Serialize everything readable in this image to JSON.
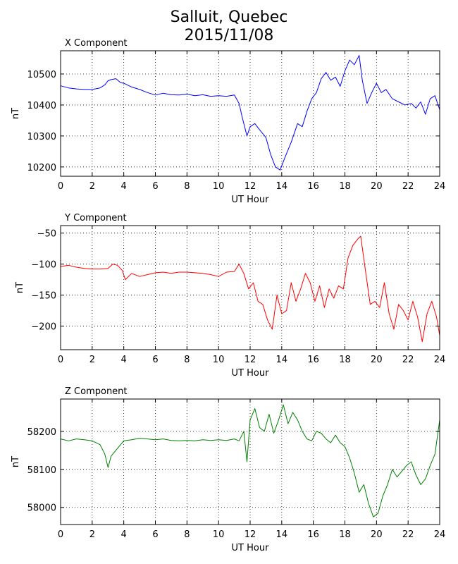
{
  "title": "Salluit, Quebec",
  "subtitle": "2015/11/08",
  "chart_data": [
    {
      "type": "line",
      "title": "X Component",
      "xlabel": "UT Hour",
      "ylabel": "nT",
      "color": "#0000ff",
      "xlim": [
        0,
        24
      ],
      "ylim": [
        10170,
        10575
      ],
      "xticks": [
        0,
        2,
        4,
        6,
        8,
        10,
        12,
        14,
        16,
        18,
        20,
        22,
        24
      ],
      "yticks": [
        10200,
        10300,
        10400,
        10500
      ],
      "grid": true,
      "series": [
        {
          "x": [
            0,
            0.5,
            1,
            1.5,
            2,
            2.5,
            2.8,
            3.0,
            3.2,
            3.5,
            3.8,
            4.0,
            4.5,
            5.0,
            5.5,
            6.0,
            6.5,
            7.0,
            7.5,
            8.0,
            8.5,
            9.0,
            9.5,
            10.0,
            10.5,
            11.0,
            11.3,
            11.5,
            11.8,
            12.0,
            12.3,
            12.6,
            13.0,
            13.3,
            13.6,
            13.9,
            14.2,
            14.6,
            15.0,
            15.3,
            15.6,
            15.9,
            16.2,
            16.5,
            16.8,
            17.1,
            17.4,
            17.7,
            18.0,
            18.3,
            18.6,
            18.9,
            19.1,
            19.4,
            19.7,
            20.0,
            20.3,
            20.6,
            21.0,
            21.4,
            21.8,
            22.2,
            22.5,
            22.8,
            23.1,
            23.4,
            23.7,
            24.0
          ],
          "y": [
            10462,
            10455,
            10452,
            10450,
            10450,
            10455,
            10465,
            10478,
            10482,
            10485,
            10472,
            10470,
            10458,
            10450,
            10440,
            10432,
            10438,
            10433,
            10432,
            10435,
            10430,
            10433,
            10428,
            10430,
            10428,
            10432,
            10405,
            10360,
            10300,
            10330,
            10340,
            10320,
            10295,
            10240,
            10200,
            10190,
            10230,
            10280,
            10340,
            10330,
            10380,
            10420,
            10440,
            10485,
            10505,
            10480,
            10490,
            10460,
            10510,
            10545,
            10530,
            10560,
            10480,
            10405,
            10440,
            10470,
            10440,
            10450,
            10420,
            10410,
            10400,
            10405,
            10390,
            10410,
            10370,
            10420,
            10430,
            10385
          ]
        }
      ]
    },
    {
      "type": "line",
      "title": "Y Component",
      "xlabel": "UT Hour",
      "ylabel": "nT",
      "color": "#ff0000",
      "xlim": [
        0,
        24
      ],
      "ylim": [
        -238,
        -38
      ],
      "xticks": [
        0,
        2,
        4,
        6,
        8,
        10,
        12,
        14,
        16,
        18,
        20,
        22,
        24
      ],
      "yticks": [
        -50,
        -100,
        -150,
        -200
      ],
      "grid": true,
      "series": [
        {
          "x": [
            0,
            0.5,
            1,
            1.5,
            2,
            2.5,
            3.0,
            3.3,
            3.6,
            3.9,
            4.1,
            4.5,
            5.0,
            5.5,
            6.0,
            6.5,
            7.0,
            7.5,
            8.0,
            8.5,
            9.0,
            9.5,
            10.0,
            10.5,
            11.0,
            11.3,
            11.6,
            11.9,
            12.2,
            12.5,
            12.8,
            13.1,
            13.4,
            13.7,
            14.0,
            14.3,
            14.6,
            14.9,
            15.2,
            15.5,
            15.8,
            16.1,
            16.4,
            16.7,
            17.0,
            17.3,
            17.6,
            17.9,
            18.2,
            18.5,
            18.8,
            19.0,
            19.3,
            19.6,
            19.9,
            20.2,
            20.5,
            20.8,
            21.1,
            21.4,
            21.7,
            22.0,
            22.3,
            22.6,
            22.9,
            23.2,
            23.5,
            23.8,
            24.0
          ],
          "y": [
            -104,
            -102,
            -105,
            -107,
            -108,
            -108,
            -107,
            -100,
            -102,
            -110,
            -125,
            -115,
            -120,
            -117,
            -114,
            -113,
            -115,
            -113,
            -113,
            -114,
            -115,
            -117,
            -120,
            -113,
            -112,
            -100,
            -115,
            -140,
            -130,
            -160,
            -165,
            -190,
            -205,
            -150,
            -180,
            -175,
            -130,
            -160,
            -140,
            -115,
            -130,
            -160,
            -135,
            -170,
            -140,
            -155,
            -135,
            -140,
            -90,
            -70,
            -60,
            -55,
            -110,
            -165,
            -160,
            -170,
            -130,
            -180,
            -205,
            -165,
            -175,
            -190,
            -160,
            -185,
            -225,
            -180,
            -160,
            -185,
            -215
          ]
        }
      ]
    },
    {
      "type": "line",
      "title": "Z Component",
      "xlabel": "UT Hour",
      "ylabel": "nT",
      "color": "#008000",
      "xlim": [
        0,
        24
      ],
      "ylim": [
        57955,
        58285
      ],
      "xticks": [
        0,
        2,
        4,
        6,
        8,
        10,
        12,
        14,
        16,
        18,
        20,
        22,
        24
      ],
      "yticks": [
        58000,
        58100,
        58200
      ],
      "grid": true,
      "series": [
        {
          "x": [
            0,
            0.5,
            1,
            1.5,
            2,
            2.5,
            2.8,
            3.0,
            3.2,
            3.6,
            4.0,
            4.5,
            5.0,
            5.5,
            6.0,
            6.5,
            7.0,
            7.5,
            8.0,
            8.5,
            9.0,
            9.5,
            10.0,
            10.5,
            11.0,
            11.3,
            11.6,
            11.8,
            12.0,
            12.3,
            12.6,
            12.9,
            13.2,
            13.5,
            13.8,
            14.1,
            14.4,
            14.7,
            15.0,
            15.3,
            15.6,
            15.9,
            16.2,
            16.5,
            16.8,
            17.1,
            17.4,
            17.7,
            18.0,
            18.3,
            18.6,
            18.9,
            19.2,
            19.5,
            19.8,
            20.1,
            20.4,
            20.7,
            21.0,
            21.3,
            21.6,
            21.9,
            22.2,
            22.5,
            22.8,
            23.1,
            23.4,
            23.7,
            24.0
          ],
          "y": [
            58180,
            58175,
            58180,
            58178,
            58175,
            58165,
            58140,
            58105,
            58135,
            58155,
            58175,
            58178,
            58182,
            58180,
            58178,
            58180,
            58176,
            58175,
            58176,
            58175,
            58178,
            58176,
            58178,
            58176,
            58180,
            58175,
            58200,
            58120,
            58230,
            58260,
            58210,
            58200,
            58245,
            58195,
            58230,
            58270,
            58220,
            58250,
            58230,
            58200,
            58180,
            58175,
            58200,
            58195,
            58180,
            58170,
            58190,
            58170,
            58160,
            58130,
            58090,
            58040,
            58060,
            58010,
            57975,
            57985,
            58030,
            58060,
            58100,
            58080,
            58095,
            58110,
            58120,
            58085,
            58060,
            58075,
            58110,
            58140,
            58230
          ]
        }
      ]
    }
  ]
}
